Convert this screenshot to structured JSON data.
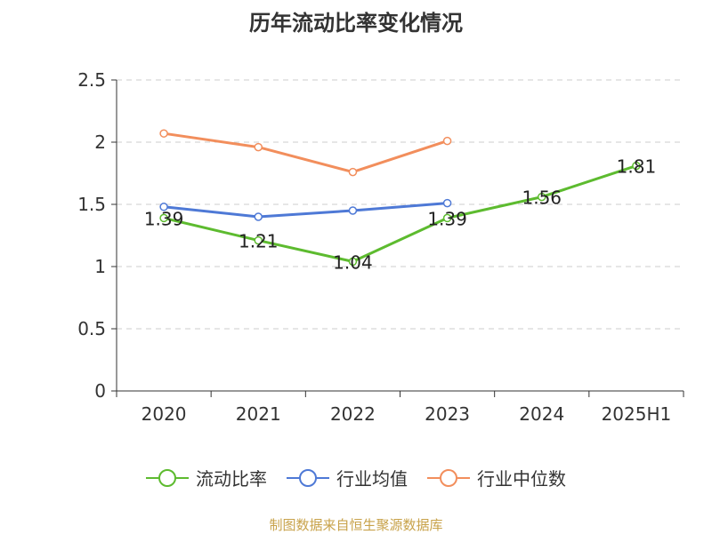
{
  "chart_data": {
    "type": "line",
    "title": "历年流动比率变化情况",
    "categories": [
      "2020",
      "2021",
      "2022",
      "2023",
      "2024",
      "2025H1"
    ],
    "y_ticks": [
      "0",
      "0.5",
      "1",
      "1.5",
      "2",
      "2.5"
    ],
    "ylim": [
      0,
      2.5
    ],
    "grid": true,
    "legend_position": "bottom",
    "series": [
      {
        "name": "流动比率",
        "color": "#5dbb2f",
        "values": [
          1.39,
          1.21,
          1.04,
          1.39,
          1.56,
          1.81
        ],
        "labels": [
          "1.39",
          "1.21",
          "1.04",
          "1.39",
          "1.56",
          "1.81"
        ]
      },
      {
        "name": "行业均值",
        "color": "#4e79d6",
        "values": [
          1.48,
          1.4,
          1.45,
          1.51,
          null,
          null
        ]
      },
      {
        "name": "行业中位数",
        "color": "#f28e5c",
        "values": [
          2.07,
          1.96,
          1.76,
          2.01,
          null,
          null
        ]
      }
    ]
  },
  "source_text": "制图数据来自恒生聚源数据库"
}
